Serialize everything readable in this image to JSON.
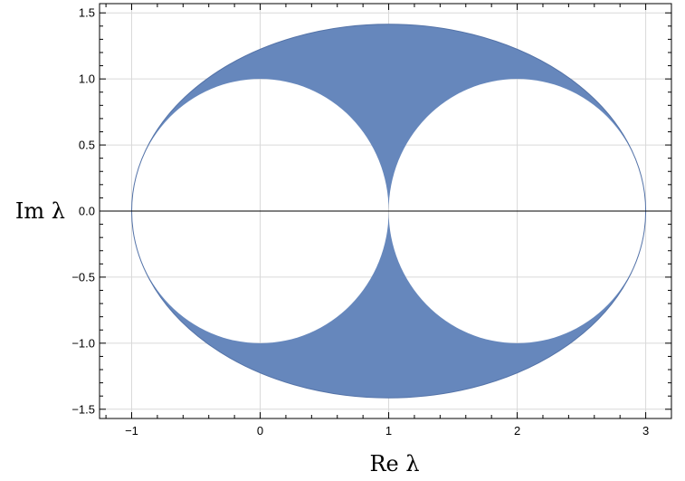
{
  "chart_data": {
    "type": "area",
    "xlabel": "Re λ",
    "ylabel": "Im λ",
    "xlim": [
      -1.25,
      3.2
    ],
    "ylim": [
      -1.57,
      1.57
    ],
    "x_ticks": [
      {
        "value": -1,
        "label": "−1"
      },
      {
        "value": 0,
        "label": "0"
      },
      {
        "value": 1,
        "label": "1"
      },
      {
        "value": 2,
        "label": "2"
      },
      {
        "value": 3,
        "label": "3"
      }
    ],
    "y_ticks": [
      {
        "value": -1.5,
        "label": "−1.5"
      },
      {
        "value": -1.0,
        "label": "−1.0"
      },
      {
        "value": -0.5,
        "label": "−0.5"
      },
      {
        "value": 0.0,
        "label": "0.0"
      },
      {
        "value": 0.5,
        "label": "0.5"
      },
      {
        "value": 1.0,
        "label": "1.0"
      },
      {
        "value": 1.5,
        "label": "1.5"
      }
    ],
    "grid": true,
    "region": {
      "outer_ellipse": {
        "center": [
          1,
          0
        ],
        "semi_axis_x": 2,
        "semi_axis_y": 1.414
      },
      "excluded_circles": [
        {
          "center": [
            0,
            0
          ],
          "radius": 1
        },
        {
          "center": [
            2,
            0
          ],
          "radius": 1
        }
      ]
    },
    "colors": {
      "fill": "#6687bc",
      "edge": "#5473a8",
      "grid": "#d9d9d9",
      "axis": "#000000"
    }
  }
}
